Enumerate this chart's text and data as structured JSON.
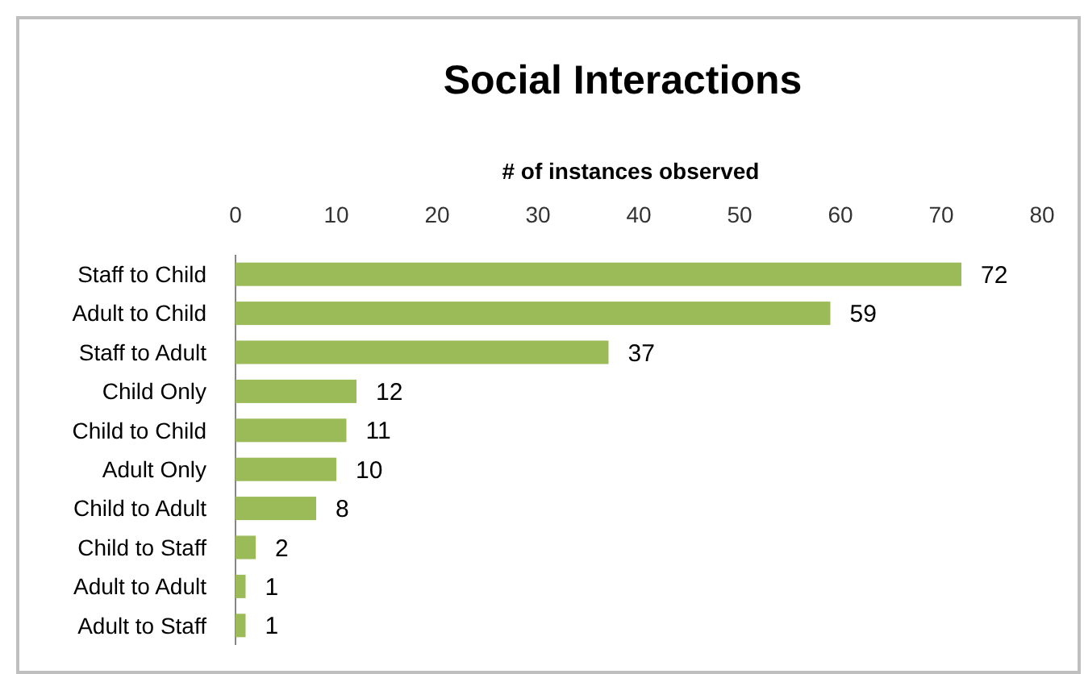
{
  "chart_data": {
    "type": "bar",
    "orientation": "horizontal",
    "title": "Social Interactions",
    "xlabel": "# of instances observed",
    "categories": [
      "Staff to Child",
      "Adult to Child",
      "Staff to Adult",
      "Child Only",
      "Child to Child",
      "Adult Only",
      "Child to Adult",
      "Child to Staff",
      "Adult to Adult",
      "Adult to Staff"
    ],
    "values": [
      72,
      59,
      37,
      12,
      11,
      10,
      8,
      2,
      1,
      1
    ],
    "color": "#9bbb59",
    "xlim": [
      0,
      80
    ],
    "xticks": [
      0,
      10,
      20,
      30,
      40,
      50,
      60,
      70,
      80
    ],
    "grid": false,
    "data_labels": true
  }
}
